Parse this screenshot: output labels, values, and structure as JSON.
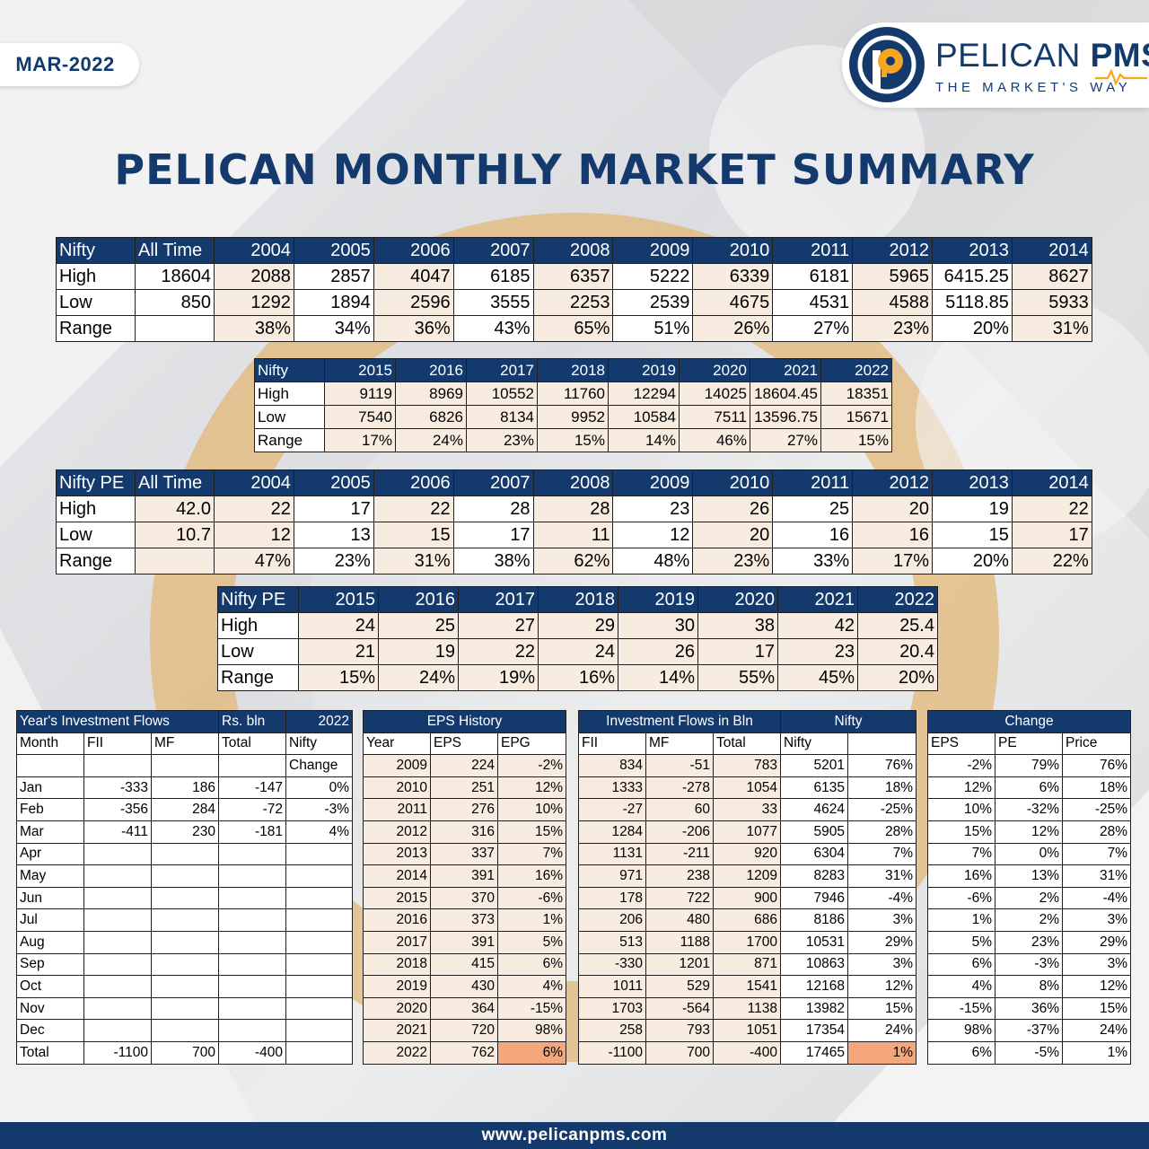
{
  "date_badge": "MAR-2022",
  "brand": {
    "name_part1": "PELICAN ",
    "name_part2": "PMS",
    "tagline": "THE MARKET'S WAY"
  },
  "title": "PELICAN MONTHLY MARKET SUMMARY",
  "footer_url": "www.pelicanpms.com",
  "colors": {
    "navy": "#143a6d",
    "highlight": "#f4a77c",
    "peach": "#f8ece0"
  },
  "nifty_a": {
    "header": [
      "Nifty",
      "All Time",
      "2004",
      "2005",
      "2006",
      "2007",
      "2008",
      "2009",
      "2010",
      "2011",
      "2012",
      "2013",
      "2014"
    ],
    "rows": [
      [
        "High",
        "18604",
        "2088",
        "2857",
        "4047",
        "6185",
        "6357",
        "5222",
        "6339",
        "6181",
        "5965",
        "6415.25",
        "8627"
      ],
      [
        "Low",
        "850",
        "1292",
        "1894",
        "2596",
        "3555",
        "2253",
        "2539",
        "4675",
        "4531",
        "4588",
        "5118.85",
        "5933"
      ],
      [
        "Range",
        "",
        "38%",
        "34%",
        "36%",
        "43%",
        "65%",
        "51%",
        "26%",
        "27%",
        "23%",
        "20%",
        "31%"
      ]
    ]
  },
  "nifty_b": {
    "header": [
      "Nifty",
      "2015",
      "2016",
      "2017",
      "2018",
      "2019",
      "2020",
      "2021",
      "2022"
    ],
    "rows": [
      [
        "High",
        "9119",
        "8969",
        "10552",
        "11760",
        "12294",
        "14025",
        "18604.45",
        "18351"
      ],
      [
        "Low",
        "7540",
        "6826",
        "8134",
        "9952",
        "10584",
        "7511",
        "13596.75",
        "15671"
      ],
      [
        "Range",
        "17%",
        "24%",
        "23%",
        "15%",
        "14%",
        "46%",
        "27%",
        "15%"
      ]
    ]
  },
  "pe_a": {
    "header": [
      "Nifty PE",
      "All Time",
      "2004",
      "2005",
      "2006",
      "2007",
      "2008",
      "2009",
      "2010",
      "2011",
      "2012",
      "2013",
      "2014"
    ],
    "rows": [
      [
        "High",
        "42.0",
        "22",
        "17",
        "22",
        "28",
        "28",
        "23",
        "26",
        "25",
        "20",
        "19",
        "22"
      ],
      [
        "Low",
        "10.7",
        "12",
        "13",
        "15",
        "17",
        "11",
        "12",
        "20",
        "16",
        "16",
        "15",
        "17"
      ],
      [
        "Range",
        "",
        "47%",
        "23%",
        "31%",
        "38%",
        "62%",
        "48%",
        "23%",
        "33%",
        "17%",
        "20%",
        "22%"
      ]
    ]
  },
  "pe_b": {
    "header": [
      "Nifty PE",
      "2015",
      "2016",
      "2017",
      "2018",
      "2019",
      "2020",
      "2021",
      "2022"
    ],
    "rows": [
      [
        "High",
        "24",
        "25",
        "27",
        "29",
        "30",
        "38",
        "42",
        "25.4"
      ],
      [
        "Low",
        "21",
        "19",
        "22",
        "24",
        "26",
        "17",
        "23",
        "20.4"
      ],
      [
        "Range",
        "15%",
        "24%",
        "19%",
        "16%",
        "14%",
        "55%",
        "45%",
        "20%"
      ]
    ]
  },
  "flows": {
    "title": "Year's Investment Flows",
    "unit": "Rs. bln",
    "year": "2022",
    "sub": [
      "Month",
      "FII",
      "MF",
      "Total",
      "Nifty"
    ],
    "sub2": [
      "",
      "",
      "",
      "",
      "Change"
    ],
    "rows": [
      [
        "Jan",
        "-333",
        "186",
        "-147",
        "0%"
      ],
      [
        "Feb",
        "-356",
        "284",
        "-72",
        "-3%"
      ],
      [
        "Mar",
        "-411",
        "230",
        "-181",
        "4%"
      ],
      [
        "Apr",
        "",
        "",
        "",
        ""
      ],
      [
        "May",
        "",
        "",
        "",
        ""
      ],
      [
        "Jun",
        "",
        "",
        "",
        ""
      ],
      [
        "Jul",
        "",
        "",
        "",
        ""
      ],
      [
        "Aug",
        "",
        "",
        "",
        ""
      ],
      [
        "Sep",
        "",
        "",
        "",
        ""
      ],
      [
        "Oct",
        "",
        "",
        "",
        ""
      ],
      [
        "Nov",
        "",
        "",
        "",
        ""
      ],
      [
        "Dec",
        "",
        "",
        "",
        ""
      ],
      [
        "Total",
        "-1100",
        "700",
        "-400",
        ""
      ]
    ]
  },
  "eps": {
    "title": "EPS History",
    "sub": [
      "Year",
      "EPS",
      "EPG"
    ],
    "rows": [
      [
        "2009",
        "224",
        "-2%"
      ],
      [
        "2010",
        "251",
        "12%"
      ],
      [
        "2011",
        "276",
        "10%"
      ],
      [
        "2012",
        "316",
        "15%"
      ],
      [
        "2013",
        "337",
        "7%"
      ],
      [
        "2014",
        "391",
        "16%"
      ],
      [
        "2015",
        "370",
        "-6%"
      ],
      [
        "2016",
        "373",
        "1%"
      ],
      [
        "2017",
        "391",
        "5%"
      ],
      [
        "2018",
        "415",
        "6%"
      ],
      [
        "2019",
        "430",
        "4%"
      ],
      [
        "2020",
        "364",
        "-15%"
      ],
      [
        "2021",
        "720",
        "98%"
      ],
      [
        "2022",
        "762",
        "6%"
      ]
    ]
  },
  "inv": {
    "title": "Investment Flows in Bln",
    "title2": "Nifty",
    "sub": [
      "FII",
      "MF",
      "Total",
      "Nifty",
      ""
    ],
    "rows": [
      [
        "834",
        "-51",
        "783",
        "5201",
        "76%"
      ],
      [
        "1333",
        "-278",
        "1054",
        "6135",
        "18%"
      ],
      [
        "-27",
        "60",
        "33",
        "4624",
        "-25%"
      ],
      [
        "1284",
        "-206",
        "1077",
        "5905",
        "28%"
      ],
      [
        "1131",
        "-211",
        "920",
        "6304",
        "7%"
      ],
      [
        "971",
        "238",
        "1209",
        "8283",
        "31%"
      ],
      [
        "178",
        "722",
        "900",
        "7946",
        "-4%"
      ],
      [
        "206",
        "480",
        "686",
        "8186",
        "3%"
      ],
      [
        "513",
        "1188",
        "1700",
        "10531",
        "29%"
      ],
      [
        "-330",
        "1201",
        "871",
        "10863",
        "3%"
      ],
      [
        "1011",
        "529",
        "1541",
        "12168",
        "12%"
      ],
      [
        "1703",
        "-564",
        "1138",
        "13982",
        "15%"
      ],
      [
        "258",
        "793",
        "1051",
        "17354",
        "24%"
      ],
      [
        "-1100",
        "700",
        "-400",
        "17465",
        "1%"
      ]
    ]
  },
  "chg": {
    "title": "Change",
    "sub": [
      "EPS",
      "PE",
      "Price"
    ],
    "rows": [
      [
        "-2%",
        "79%",
        "76%"
      ],
      [
        "12%",
        "6%",
        "18%"
      ],
      [
        "10%",
        "-32%",
        "-25%"
      ],
      [
        "15%",
        "12%",
        "28%"
      ],
      [
        "7%",
        "0%",
        "7%"
      ],
      [
        "16%",
        "13%",
        "31%"
      ],
      [
        "-6%",
        "2%",
        "-4%"
      ],
      [
        "1%",
        "2%",
        "3%"
      ],
      [
        "5%",
        "23%",
        "29%"
      ],
      [
        "6%",
        "-3%",
        "3%"
      ],
      [
        "4%",
        "8%",
        "12%"
      ],
      [
        "-15%",
        "36%",
        "15%"
      ],
      [
        "98%",
        "-37%",
        "24%"
      ],
      [
        "6%",
        "-5%",
        "1%"
      ]
    ]
  }
}
